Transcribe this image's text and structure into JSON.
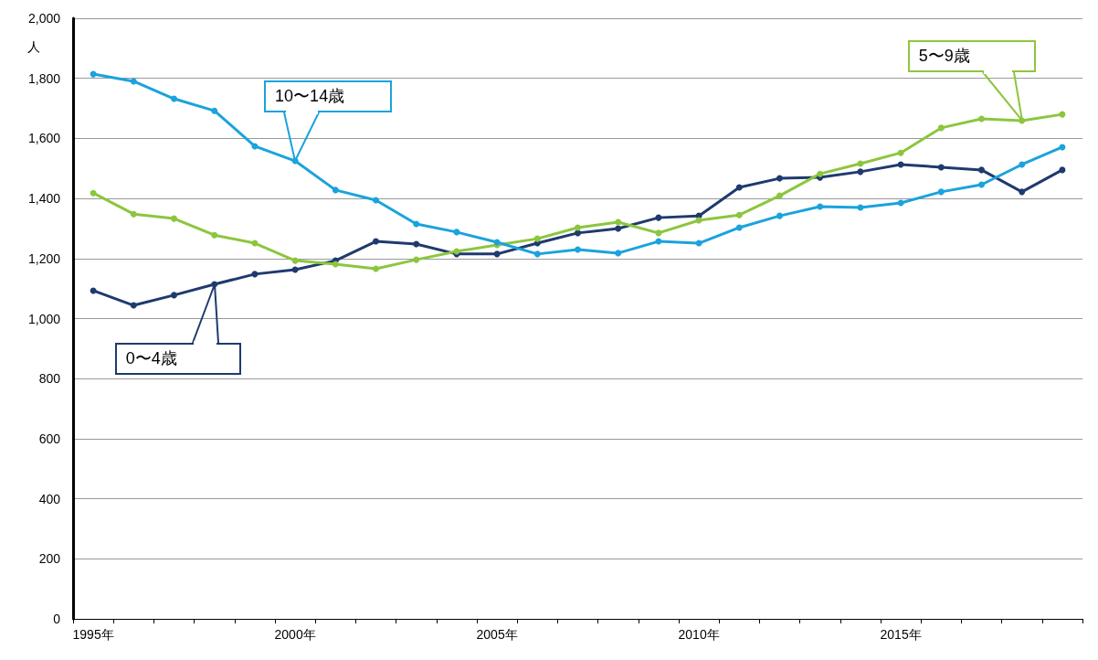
{
  "chart_data": {
    "type": "line",
    "ylabel": "人",
    "categories": [
      "1995年",
      null,
      null,
      null,
      null,
      "2000年",
      null,
      null,
      null,
      null,
      "2005年",
      null,
      null,
      null,
      null,
      "2010年",
      null,
      null,
      null,
      null,
      "2015年",
      null,
      null,
      null,
      null
    ],
    "series": [
      {
        "name": "0〜4歳",
        "color": "#1f3a6e",
        "values": [
          1093,
          1044,
          1078,
          1114,
          1148,
          1163,
          1193,
          1257,
          1248,
          1215,
          1215,
          1251,
          1285,
          1300,
          1336,
          1342,
          1437,
          1467,
          1470,
          1489,
          1513,
          1504,
          1495,
          1422,
          1495
        ]
      },
      {
        "name": "5〜9歳",
        "color": "#8cc63f",
        "values": [
          1418,
          1348,
          1333,
          1278,
          1251,
          1193,
          1181,
          1166,
          1196,
          1224,
          1245,
          1266,
          1303,
          1321,
          1285,
          1327,
          1345,
          1409,
          1482,
          1516,
          1552,
          1635,
          1665,
          1659,
          1680
        ]
      },
      {
        "name": "10〜14歳",
        "color": "#1aa3dc",
        "values": [
          1814,
          1790,
          1732,
          1692,
          1574,
          1525,
          1428,
          1394,
          1315,
          1288,
          1254,
          1215,
          1230,
          1218,
          1257,
          1251,
          1303,
          1342,
          1373,
          1370,
          1385,
          1422,
          1446,
          1513,
          1571
        ]
      }
    ],
    "ylim": [
      0,
      2000
    ],
    "yticks": [
      0,
      200,
      400,
      600,
      800,
      {
        "value": 1000,
        "label": "1,000"
      },
      {
        "value": 1200,
        "label": "1,200"
      },
      {
        "value": 1400,
        "label": "1,400"
      },
      {
        "value": 1600,
        "label": "1,600"
      },
      {
        "value": 1800,
        "label": "1,800"
      },
      {
        "value": 2000,
        "label": "2,000"
      }
    ],
    "grid": "y",
    "marker": "circle",
    "line_style": "solid"
  }
}
